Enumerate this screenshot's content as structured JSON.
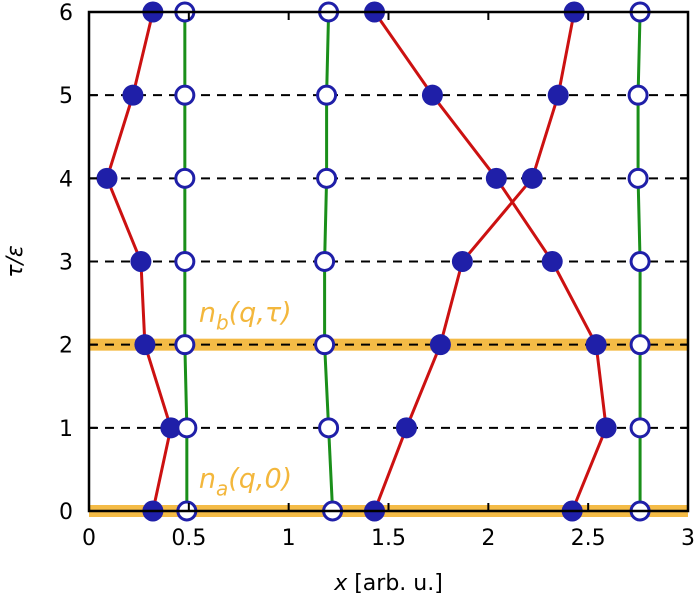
{
  "chart_data": {
    "type": "line",
    "xlabel_var": "x",
    "xlabel_unit": " [arb. u.]",
    "ylabel": "τ/ε",
    "xlim": [
      0,
      3
    ],
    "ylim": [
      0,
      6
    ],
    "xticks": [
      "0",
      "0.5",
      "1",
      "1.5",
      "2",
      "2.5",
      "3"
    ],
    "yticks": [
      "0",
      "1",
      "2",
      "3",
      "4",
      "5",
      "6"
    ],
    "dashed_gridlines_y": [
      1,
      2,
      3,
      4,
      5
    ],
    "highlight_bands_y": [
      0,
      2
    ],
    "annotations": [
      {
        "base": "n",
        "sub": "a",
        "rest": "(q,0)",
        "x": 0.55,
        "y": 0.28
      },
      {
        "base": "n",
        "sub": "b",
        "rest": "(q,τ)",
        "x": 0.55,
        "y": 2.28
      }
    ],
    "series": [
      {
        "style": "filled-red",
        "points": [
          [
            0.32,
            0
          ],
          [
            0.41,
            1
          ],
          [
            0.28,
            2
          ],
          [
            0.26,
            3
          ],
          [
            0.09,
            4
          ],
          [
            0.22,
            5
          ],
          [
            0.32,
            6
          ]
        ]
      },
      {
        "style": "filled-red",
        "points": [
          [
            1.43,
            0
          ],
          [
            1.59,
            1
          ],
          [
            1.76,
            2
          ],
          [
            1.87,
            3
          ],
          [
            2.22,
            4
          ],
          [
            2.35,
            5
          ],
          [
            2.43,
            6
          ]
        ]
      },
      {
        "style": "filled-red",
        "points": [
          [
            2.42,
            0
          ],
          [
            2.59,
            1
          ],
          [
            2.54,
            2
          ],
          [
            2.32,
            3
          ],
          [
            2.04,
            4
          ],
          [
            1.72,
            5
          ],
          [
            1.43,
            6
          ]
        ]
      },
      {
        "style": "open-green",
        "points": [
          [
            0.49,
            0
          ],
          [
            0.49,
            1
          ],
          [
            0.48,
            2
          ],
          [
            0.48,
            3
          ],
          [
            0.48,
            4
          ],
          [
            0.48,
            5
          ],
          [
            0.48,
            6
          ]
        ]
      },
      {
        "style": "open-green",
        "points": [
          [
            1.22,
            0
          ],
          [
            1.2,
            1
          ],
          [
            1.18,
            2
          ],
          [
            1.18,
            3
          ],
          [
            1.19,
            4
          ],
          [
            1.19,
            5
          ],
          [
            1.2,
            6
          ]
        ]
      },
      {
        "style": "open-green",
        "points": [
          [
            2.76,
            0
          ],
          [
            2.76,
            1
          ],
          [
            2.76,
            2
          ],
          [
            2.76,
            3
          ],
          [
            2.75,
            4
          ],
          [
            2.75,
            5
          ],
          [
            2.76,
            6
          ]
        ]
      }
    ],
    "colors": {
      "filled_marker": "#1f1fa8",
      "red_line": "#cc1111",
      "green_line": "#1a8f1a",
      "open_marker": "#1f1fa8",
      "highlight": "#f3b73c"
    }
  }
}
